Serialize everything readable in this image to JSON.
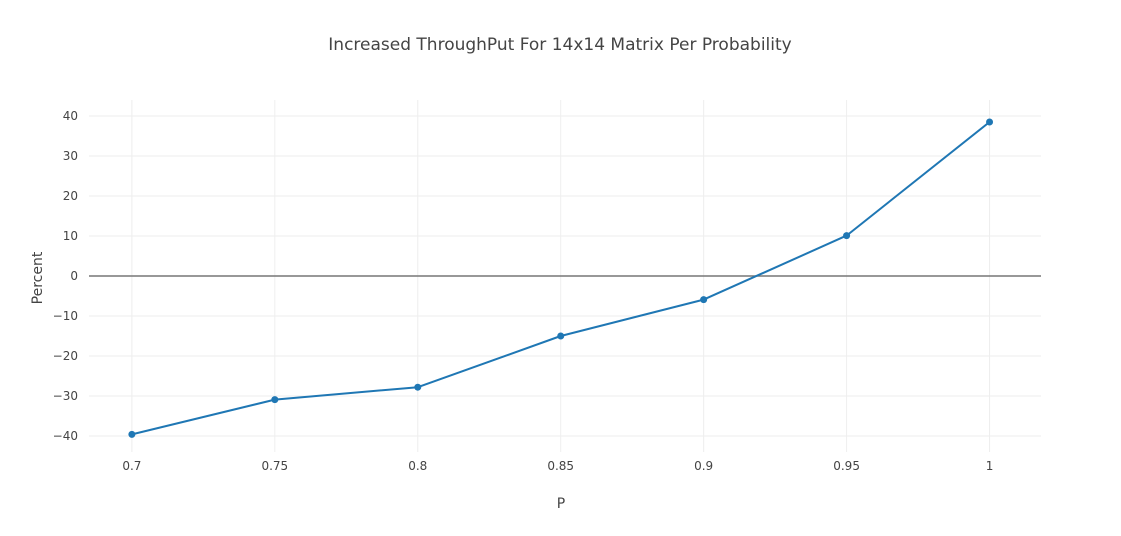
{
  "chart_data": {
    "type": "line",
    "title": "Increased ThroughPut For 14x14 Matrix Per Probability",
    "xlabel": "P",
    "ylabel": "Percent",
    "x_ticks": [
      "0.7",
      "0.75",
      "0.8",
      "0.85",
      "0.9",
      "0.95",
      "1"
    ],
    "y_ticks": [
      "40",
      "30",
      "20",
      "10",
      "0",
      "−10",
      "−20",
      "−30",
      "−40"
    ],
    "xlim": [
      0.685,
      1.018
    ],
    "ylim": [
      -44,
      44
    ],
    "grid": true,
    "zero_line": true,
    "series": [
      {
        "x": [
          0.7,
          0.75,
          0.8,
          0.85,
          0.9,
          0.95,
          1.0
        ],
        "y": [
          -39.6,
          -30.9,
          -27.8,
          -15.0,
          -5.9,
          10.1,
          38.5
        ],
        "color": "#1f77b4",
        "mode": "lines+markers"
      }
    ]
  }
}
